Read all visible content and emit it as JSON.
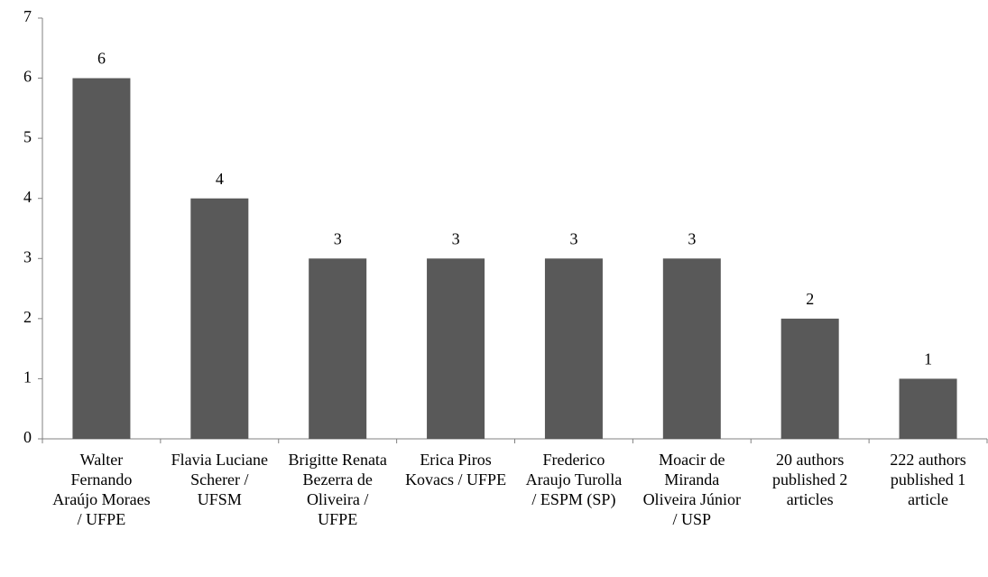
{
  "chart_data": {
    "type": "bar",
    "categories": [
      "Walter Fernando Araújo Moraes / UFPE",
      "Flavia Luciane Scherer / UFSM",
      "Brigitte Renata Bezerra de Oliveira / UFPE",
      "Erica Piros Kovacs / UFPE",
      "Frederico Araujo Turolla / ESPM (SP)",
      "Moacir de Miranda Oliveira Júnior / USP",
      "20 authors published 2 articles",
      "222 authors published 1 article"
    ],
    "values": [
      6,
      4,
      3,
      3,
      3,
      3,
      2,
      1
    ],
    "color": "#595959",
    "ylim": [
      0,
      7
    ],
    "yticks": [
      0,
      1,
      2,
      3,
      4,
      5,
      6,
      7
    ],
    "grid": false
  }
}
